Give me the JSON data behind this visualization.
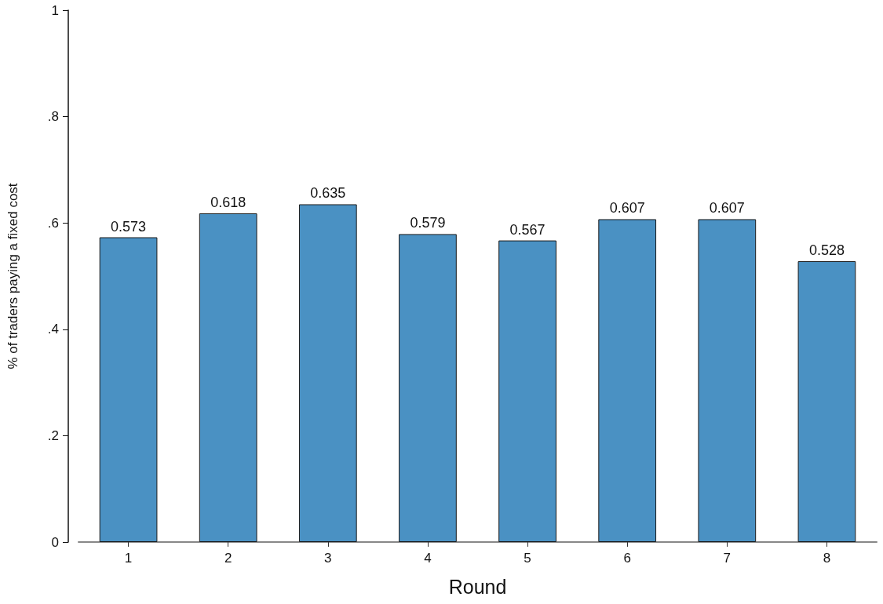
{
  "chart_data": {
    "type": "bar",
    "xlabel": "Round",
    "ylabel": "% of traders paying a fixed cost",
    "categories": [
      "1",
      "2",
      "3",
      "4",
      "5",
      "6",
      "7",
      "8"
    ],
    "values": [
      0.573,
      0.618,
      0.635,
      0.579,
      0.567,
      0.607,
      0.607,
      0.528
    ],
    "color": "#4a91c3",
    "data_labels": true,
    "grid": false,
    "ylim": [
      0,
      1
    ],
    "yticks": [
      0,
      {
        "value": 0.2,
        "label": ".2"
      },
      {
        "value": 0.4,
        "label": ".4"
      },
      {
        "value": 0.6,
        "label": ".6"
      },
      {
        "value": 0.8,
        "label": ".8"
      },
      1
    ]
  }
}
